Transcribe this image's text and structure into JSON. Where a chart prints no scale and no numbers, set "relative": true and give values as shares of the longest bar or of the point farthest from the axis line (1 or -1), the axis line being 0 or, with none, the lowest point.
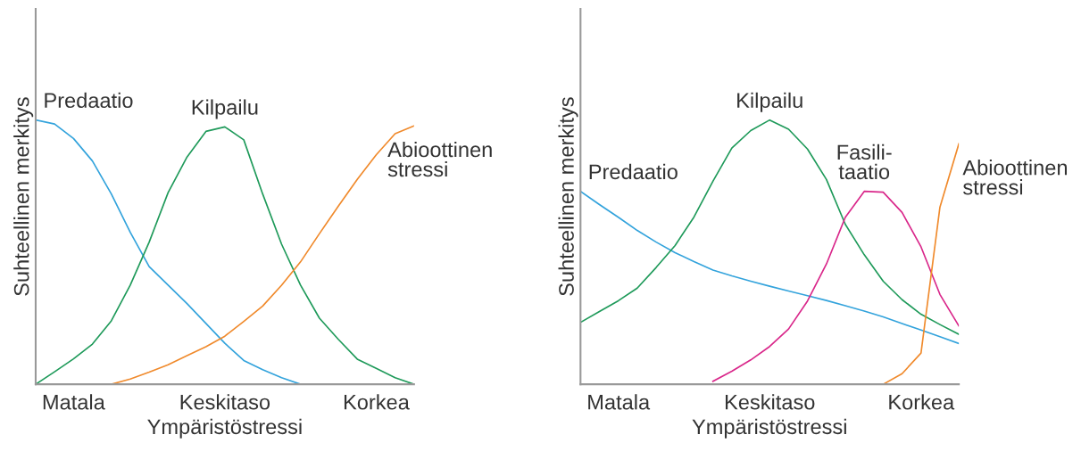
{
  "chart_data": [
    {
      "type": "line",
      "relative": true,
      "xlabel": "Ympäristöstressi",
      "ylabel": "Suhteellinen merkitys",
      "categories": [
        null,
        null,
        "Matala",
        null,
        null,
        null,
        null,
        null,
        null,
        null,
        "Keskitaso",
        null,
        null,
        null,
        null,
        null,
        null,
        null,
        "Korkea",
        null,
        null
      ],
      "grid": false,
      "marker": "none",
      "line_style": "solid",
      "series": [
        {
          "name": "Predaatio",
          "color": "#33a3dc",
          "values": [
            1,
            0.985,
            0.93,
            0.845,
            0.72,
            0.575,
            0.445,
            0.375,
            0.305,
            0.23,
            0.155,
            0.09,
            0.055,
            0.025,
            0,
            null,
            null,
            null,
            null,
            null,
            null
          ]
        },
        {
          "name": "Kilpailu",
          "color": "#1f9a5a",
          "values": [
            0,
            0.047,
            0.096,
            0.152,
            0.24,
            0.375,
            0.538,
            0.725,
            0.86,
            0.957,
            0.974,
            0.925,
            0.72,
            0.53,
            0.375,
            0.25,
            0.17,
            0.095,
            0.06,
            0.025,
            0
          ]
        },
        {
          "name": "Abioottinen\nstressi",
          "color": "#f08a2c",
          "values": [
            null,
            null,
            null,
            null,
            0,
            0.02,
            0.046,
            0.074,
            0.108,
            0.142,
            0.182,
            0.238,
            0.296,
            0.375,
            0.463,
            0.57,
            0.674,
            0.775,
            0.868,
            0.948,
            0.978
          ]
        }
      ]
    },
    {
      "type": "line",
      "relative": true,
      "xlabel": "Ympäristöstressi",
      "ylabel": "Suhteellinen merkitys",
      "categories": [
        null,
        null,
        "Matala",
        null,
        null,
        null,
        null,
        null,
        null,
        null,
        "Keskitaso",
        null,
        null,
        null,
        null,
        null,
        null,
        null,
        "Korkea",
        null,
        null
      ],
      "grid": false,
      "marker": "none",
      "line_style": "solid",
      "series": [
        {
          "name": "Predaatio",
          "color": "#33a3dc",
          "values": [
            0.73,
            0.68,
            0.632,
            0.582,
            0.538,
            0.498,
            0.464,
            0.432,
            0.41,
            0.39,
            0.371,
            0.353,
            0.335,
            0.317,
            0.297,
            0.277,
            0.255,
            0.23,
            0.205,
            0.18,
            0.154
          ]
        },
        {
          "name": "Kilpailu",
          "color": "#1f9a5a",
          "values": [
            0.234,
            0.275,
            0.316,
            0.364,
            0.442,
            0.525,
            0.633,
            0.768,
            0.894,
            0.96,
            1,
            0.965,
            0.89,
            0.775,
            0.605,
            0.49,
            0.39,
            0.32,
            0.265,
            0.226,
            0.189
          ]
        },
        {
          "name": "Fasili-\ntaatio",
          "color": "#d9278a",
          "values": [
            null,
            null,
            null,
            null,
            null,
            null,
            null,
            0.011,
            0.049,
            0.092,
            0.143,
            0.209,
            0.315,
            0.455,
            0.632,
            0.73,
            0.727,
            0.65,
            0.52,
            0.34,
            0.221
          ]
        },
        {
          "name": "Abioottinen\nstressi",
          "color": "#f08a2c",
          "values": [
            null,
            null,
            null,
            null,
            null,
            null,
            null,
            null,
            null,
            null,
            null,
            null,
            null,
            null,
            null,
            null,
            0,
            0.04,
            0.118,
            0.67,
            0.91
          ]
        }
      ]
    }
  ]
}
